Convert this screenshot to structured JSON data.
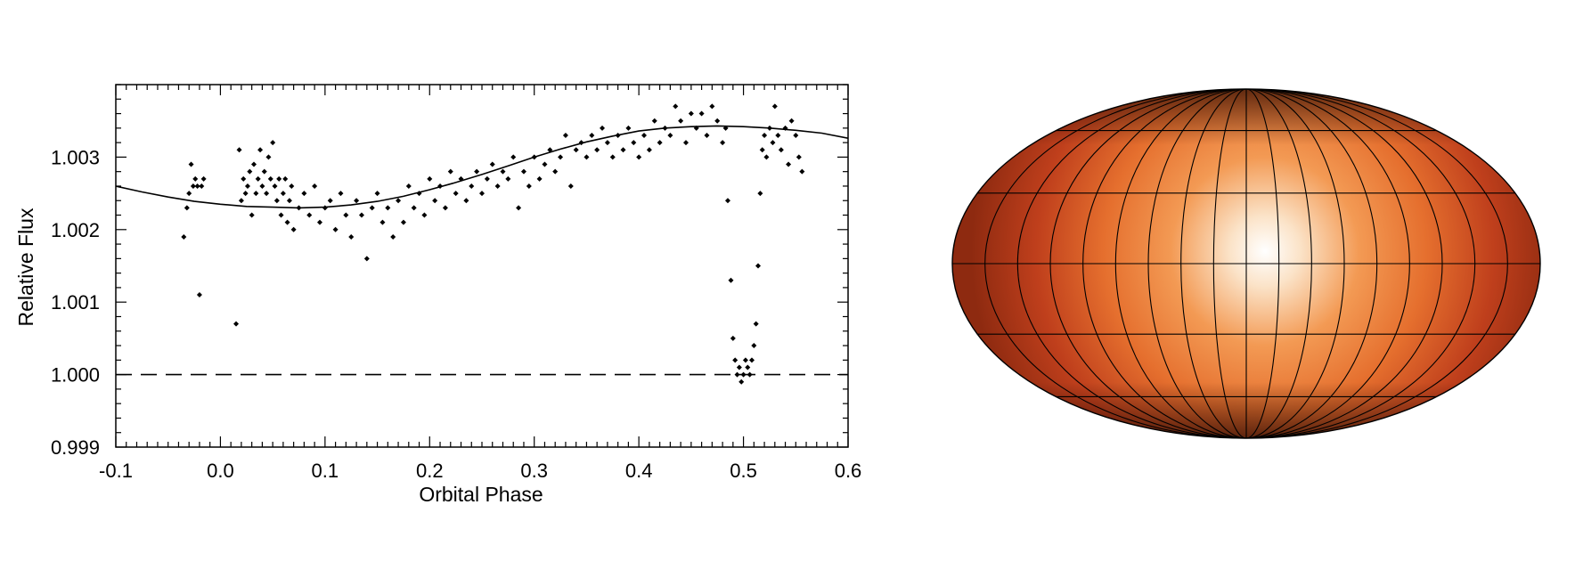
{
  "chart_data": [
    {
      "type": "scatter",
      "title": "",
      "xlabel": "Orbital Phase",
      "ylabel": "Relative Flux",
      "xlim": [
        -0.1,
        0.6
      ],
      "ylim": [
        0.999,
        1.004
      ],
      "x_ticks": [
        "-0.1",
        "0.0",
        "0.1",
        "0.2",
        "0.3",
        "0.4",
        "0.5",
        "0.6"
      ],
      "y_ticks": [
        "0.999",
        "1.000",
        "1.001",
        "1.002",
        "1.003"
      ],
      "grid": false,
      "legend": "none",
      "series": [
        {
          "kind": "points",
          "marker": "diamond",
          "color": "#000000",
          "x": [
            -0.035,
            -0.032,
            -0.03,
            -0.028,
            -0.026,
            -0.024,
            -0.022,
            -0.02,
            -0.018,
            -0.016,
            0.015,
            0.018,
            0.02,
            0.022,
            0.024,
            0.026,
            0.028,
            0.03,
            0.032,
            0.034,
            0.036,
            0.038,
            0.04,
            0.042,
            0.044,
            0.046,
            0.048,
            0.05,
            0.052,
            0.054,
            0.056,
            0.058,
            0.06,
            0.062,
            0.064,
            0.066,
            0.068,
            0.07,
            0.075,
            0.08,
            0.085,
            0.09,
            0.095,
            0.1,
            0.105,
            0.11,
            0.115,
            0.12,
            0.125,
            0.13,
            0.135,
            0.14,
            0.145,
            0.15,
            0.155,
            0.16,
            0.165,
            0.17,
            0.175,
            0.18,
            0.185,
            0.19,
            0.195,
            0.2,
            0.205,
            0.21,
            0.215,
            0.22,
            0.225,
            0.23,
            0.235,
            0.24,
            0.245,
            0.25,
            0.255,
            0.26,
            0.265,
            0.27,
            0.275,
            0.28,
            0.285,
            0.29,
            0.295,
            0.3,
            0.305,
            0.31,
            0.315,
            0.32,
            0.325,
            0.33,
            0.335,
            0.34,
            0.345,
            0.35,
            0.355,
            0.36,
            0.365,
            0.37,
            0.375,
            0.38,
            0.385,
            0.39,
            0.395,
            0.4,
            0.405,
            0.41,
            0.415,
            0.42,
            0.425,
            0.43,
            0.435,
            0.44,
            0.445,
            0.45,
            0.455,
            0.46,
            0.465,
            0.47,
            0.475,
            0.48,
            0.483,
            0.485,
            0.488,
            0.49,
            0.492,
            0.494,
            0.496,
            0.498,
            0.5,
            0.502,
            0.504,
            0.506,
            0.508,
            0.51,
            0.512,
            0.514,
            0.516,
            0.518,
            0.52,
            0.522,
            0.525,
            0.528,
            0.53,
            0.533,
            0.536,
            0.54,
            0.543,
            0.546,
            0.55,
            0.553,
            0.556
          ],
          "y": [
            1.0019,
            1.0023,
            1.0025,
            1.0029,
            1.0026,
            1.0027,
            1.0026,
            1.0011,
            1.0026,
            1.0027,
            1.0007,
            1.0031,
            1.0024,
            1.0027,
            1.0025,
            1.0026,
            1.0028,
            1.0022,
            1.0029,
            1.0025,
            1.0027,
            1.0031,
            1.0026,
            1.0028,
            1.0025,
            1.003,
            1.0027,
            1.0032,
            1.0026,
            1.0024,
            1.0027,
            1.0022,
            1.0025,
            1.0027,
            1.0021,
            1.0024,
            1.0026,
            1.002,
            1.0023,
            1.0025,
            1.0022,
            1.0026,
            1.0021,
            1.0023,
            1.0024,
            1.002,
            1.0025,
            1.0022,
            1.0019,
            1.0024,
            1.0022,
            1.0016,
            1.0023,
            1.0025,
            1.0021,
            1.0023,
            1.0019,
            1.0024,
            1.0021,
            1.0026,
            1.0023,
            1.0025,
            1.0022,
            1.0027,
            1.0024,
            1.0026,
            1.0023,
            1.0028,
            1.0025,
            1.0027,
            1.0024,
            1.0026,
            1.0028,
            1.0025,
            1.0027,
            1.0029,
            1.0026,
            1.0028,
            1.0027,
            1.003,
            1.0023,
            1.0028,
            1.0026,
            1.003,
            1.0027,
            1.0029,
            1.0031,
            1.0028,
            1.003,
            1.0033,
            1.0026,
            1.0031,
            1.0032,
            1.003,
            1.0033,
            1.0031,
            1.0034,
            1.0032,
            1.003,
            1.0033,
            1.0031,
            1.0034,
            1.0032,
            1.003,
            1.0033,
            1.0031,
            1.0035,
            1.0032,
            1.0034,
            1.0033,
            1.0037,
            1.0035,
            1.0032,
            1.0036,
            1.0034,
            1.0036,
            1.0033,
            1.0037,
            1.0035,
            1.0032,
            1.0034,
            1.0024,
            1.0013,
            1.0005,
            1.0002,
            1.0,
            1.0001,
            0.9999,
            1.0,
            1.0002,
            1.0001,
            1.0,
            1.0002,
            1.0004,
            1.0007,
            1.0015,
            1.0025,
            1.0031,
            1.0033,
            1.003,
            1.0034,
            1.0032,
            1.0037,
            1.0033,
            1.0031,
            1.0034,
            1.0029,
            1.0035,
            1.0033,
            1.003,
            1.0028
          ]
        },
        {
          "kind": "model-curve",
          "line": "solid",
          "x": [
            -0.1,
            -0.075,
            -0.05,
            -0.025,
            0.0,
            0.025,
            0.05,
            0.075,
            0.1,
            0.125,
            0.15,
            0.175,
            0.2,
            0.225,
            0.25,
            0.275,
            0.3,
            0.325,
            0.35,
            0.375,
            0.4,
            0.425,
            0.45,
            0.475,
            0.5,
            0.525,
            0.55,
            0.575,
            0.6
          ],
          "y": [
            1.0026,
            1.00252,
            1.00245,
            1.00239,
            1.00235,
            1.00232,
            1.00231,
            1.0023,
            1.00231,
            1.00234,
            1.00239,
            1.00246,
            1.00255,
            1.00265,
            1.00276,
            1.00288,
            1.003,
            1.00311,
            1.00321,
            1.00329,
            1.00336,
            1.0034,
            1.00342,
            1.00343,
            1.00342,
            1.0034,
            1.00337,
            1.00333,
            1.00326
          ]
        },
        {
          "kind": "reference-line",
          "line": "dashed",
          "y": 1.0
        }
      ]
    },
    {
      "type": "heatmap",
      "projection": "mollweide",
      "colormap": [
        "#3a0a00",
        "#8c2a10",
        "#c5441f",
        "#e86f2d",
        "#f6b072",
        "#ffffff"
      ],
      "hotspot_longitude_deg": 20,
      "hotspot_latitude_deg": 0,
      "grid": true,
      "meridian_spacing_deg": 20,
      "parallel_spacing_deg": 30
    }
  ]
}
